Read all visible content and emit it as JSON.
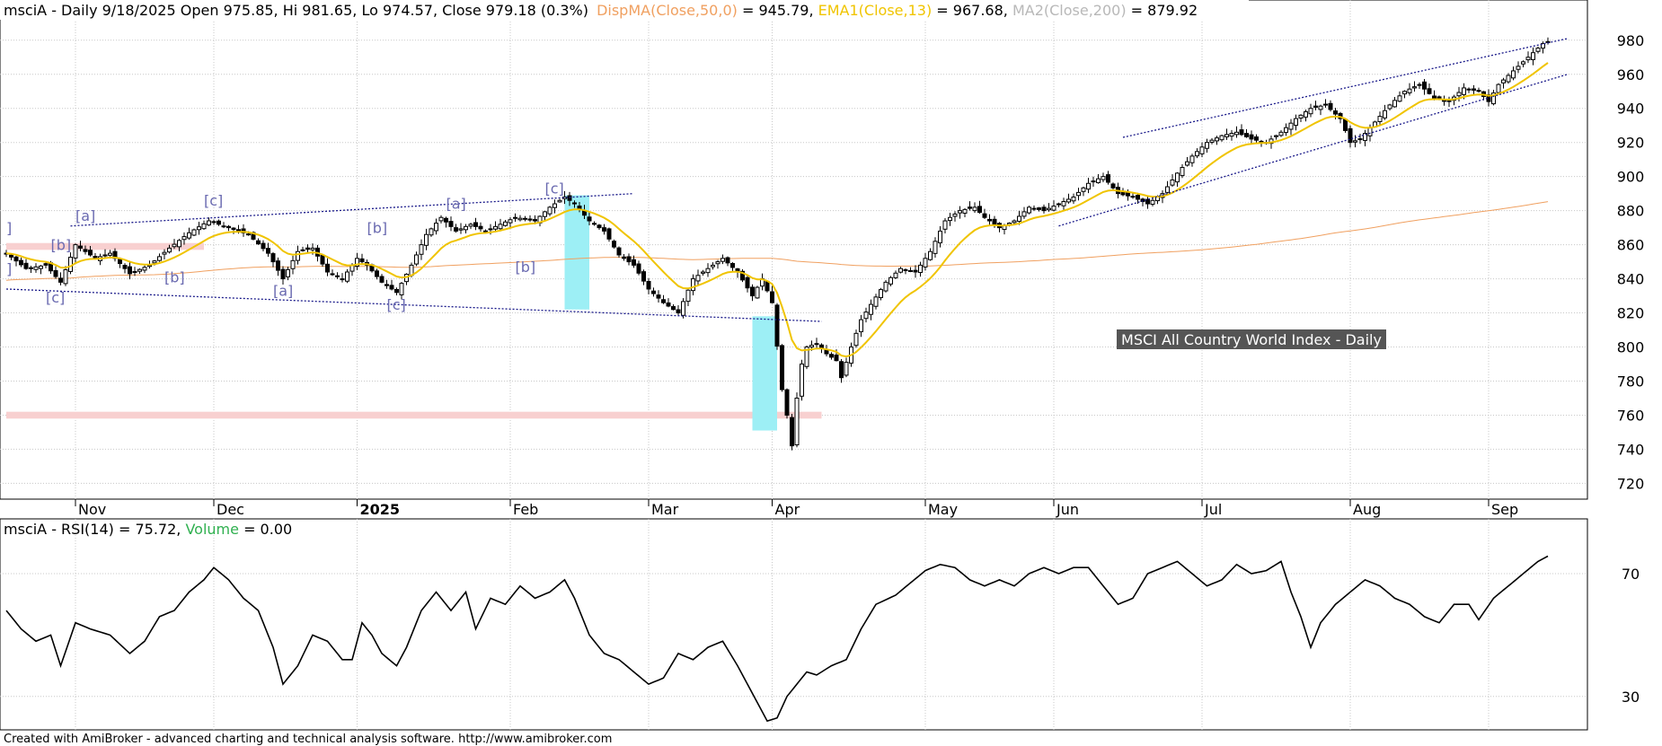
{
  "header": {
    "symbol_prefix": "msciA - Daily 9/18/2025 Open 975.85, Hi 981.65, Lo 974.57, Close 979.18 (0.3%)",
    "ind1_label": "DispMA(Close,50,0)",
    "ind1_value": " = 945.79, ",
    "ind2_label": "EMA1(Close,13)",
    "ind2_value": " = 967.68, ",
    "ind3_label": "MA2(Close,200)",
    "ind3_value": " = 879.92"
  },
  "rsi_header": {
    "prefix": "msciA - RSI(14) = 75.72, ",
    "volume_label": "Volume",
    "volume_value": " = 0.00"
  },
  "index_label": "MSCI All Country World Index - Daily",
  "footer": "Created with AmiBroker - advanced charting and technical analysis software. http://www.amibroker.com",
  "colors": {
    "dispma": "#f0a060",
    "ema": "#f0c400",
    "ma200": "#c0c0c0",
    "volume": "#30b050",
    "trend": "#1a1a8a",
    "highlight": "#9deff5",
    "zone": "#f8d0d0",
    "label_bg": "#555555"
  },
  "chart_data": {
    "type": "candlestick",
    "y_ticks": [
      720,
      740,
      760,
      780,
      800,
      820,
      840,
      860,
      880,
      900,
      920,
      940,
      960,
      980
    ],
    "ylim": [
      716,
      992
    ],
    "x_month_labels": [
      {
        "label": "Nov",
        "i": 14
      },
      {
        "label": "Dec",
        "i": 42
      },
      {
        "label": "2025",
        "i": 71
      },
      {
        "label": "Feb",
        "i": 102
      },
      {
        "label": "Mar",
        "i": 130
      },
      {
        "label": "Apr",
        "i": 155
      },
      {
        "label": "May",
        "i": 186
      },
      {
        "label": "Jun",
        "i": 212
      },
      {
        "label": "Jul",
        "i": 242
      },
      {
        "label": "Aug",
        "i": 272
      },
      {
        "label": "Sep",
        "i": 300
      }
    ],
    "close_anchors": [
      [
        0,
        855
      ],
      [
        4,
        846
      ],
      [
        8,
        848
      ],
      [
        11,
        838
      ],
      [
        14,
        860
      ],
      [
        18,
        852
      ],
      [
        21,
        855
      ],
      [
        25,
        843
      ],
      [
        29,
        848
      ],
      [
        33,
        858
      ],
      [
        37,
        867
      ],
      [
        41,
        874
      ],
      [
        45,
        870
      ],
      [
        49,
        866
      ],
      [
        53,
        855
      ],
      [
        56,
        840
      ],
      [
        59,
        856
      ],
      [
        62,
        858
      ],
      [
        65,
        844
      ],
      [
        68,
        840
      ],
      [
        71,
        852
      ],
      [
        73,
        848
      ],
      [
        76,
        838
      ],
      [
        79,
        832
      ],
      [
        82,
        848
      ],
      [
        85,
        866
      ],
      [
        88,
        876
      ],
      [
        91,
        868
      ],
      [
        94,
        872
      ],
      [
        97,
        868
      ],
      [
        100,
        872
      ],
      [
        103,
        876
      ],
      [
        107,
        874
      ],
      [
        110,
        882
      ],
      [
        113,
        888
      ],
      [
        115,
        884
      ],
      [
        118,
        874
      ],
      [
        121,
        868
      ],
      [
        124,
        854
      ],
      [
        127,
        848
      ],
      [
        130,
        834
      ],
      [
        133,
        826
      ],
      [
        136,
        820
      ],
      [
        139,
        840
      ],
      [
        142,
        846
      ],
      [
        145,
        852
      ],
      [
        148,
        844
      ],
      [
        151,
        830
      ],
      [
        153,
        840
      ],
      [
        155,
        826
      ],
      [
        157,
        775
      ],
      [
        158,
        760
      ],
      [
        159,
        742
      ],
      [
        160,
        770
      ],
      [
        161,
        790
      ],
      [
        162,
        800
      ],
      [
        164,
        802
      ],
      [
        166,
        796
      ],
      [
        168,
        792
      ],
      [
        169,
        782
      ],
      [
        171,
        800
      ],
      [
        173,
        816
      ],
      [
        175,
        825
      ],
      [
        178,
        838
      ],
      [
        181,
        846
      ],
      [
        184,
        844
      ],
      [
        187,
        856
      ],
      [
        190,
        874
      ],
      [
        193,
        880
      ],
      [
        196,
        882
      ],
      [
        198,
        876
      ],
      [
        201,
        870
      ],
      [
        204,
        874
      ],
      [
        207,
        882
      ],
      [
        210,
        880
      ],
      [
        213,
        884
      ],
      [
        216,
        888
      ],
      [
        219,
        896
      ],
      [
        222,
        900
      ],
      [
        225,
        890
      ],
      [
        228,
        888
      ],
      [
        231,
        884
      ],
      [
        234,
        890
      ],
      [
        237,
        902
      ],
      [
        240,
        912
      ],
      [
        243,
        920
      ],
      [
        246,
        924
      ],
      [
        249,
        926
      ],
      [
        252,
        922
      ],
      [
        255,
        920
      ],
      [
        258,
        926
      ],
      [
        261,
        934
      ],
      [
        264,
        940
      ],
      [
        267,
        942
      ],
      [
        270,
        934
      ],
      [
        272,
        920
      ],
      [
        274,
        922
      ],
      [
        277,
        932
      ],
      [
        280,
        942
      ],
      [
        283,
        950
      ],
      [
        286,
        954
      ],
      [
        289,
        946
      ],
      [
        292,
        944
      ],
      [
        295,
        952
      ],
      [
        298,
        950
      ],
      [
        300,
        944
      ],
      [
        302,
        954
      ],
      [
        305,
        962
      ],
      [
        308,
        970
      ],
      [
        311,
        978
      ],
      [
        312,
        979.18
      ]
    ],
    "series": [
      {
        "name": "DispMA(Close,50,0)",
        "last": 945.79
      },
      {
        "name": "EMA1(Close,13)",
        "last": 967.68
      },
      {
        "name": "MA2(Close,200)",
        "last": 879.92
      }
    ],
    "trend_channels": [
      {
        "from": [
          13,
          871
        ],
        "to": [
          127,
          890
        ]
      },
      {
        "from": [
          0,
          834
        ],
        "to": [
          165,
          815
        ]
      },
      {
        "from": [
          226,
          923
        ],
        "to": [
          316,
          981
        ]
      },
      {
        "from": [
          213,
          871
        ],
        "to": [
          316,
          960
        ]
      }
    ],
    "highlights": [
      {
        "from_i": 113,
        "to_i": 118,
        "y_low": 822,
        "y_high": 889
      },
      {
        "from_i": 151,
        "to_i": 156,
        "y_low": 751,
        "y_high": 818
      }
    ],
    "resistance_zones": [
      {
        "from_i": 0,
        "to_i": 165,
        "y_low": 758,
        "y_high": 762
      },
      {
        "from_i": 0,
        "to_i": 40,
        "y_low": 857,
        "y_high": 861
      }
    ],
    "wave_labels": [
      {
        "text": "]",
        "i": 0,
        "y": 867
      },
      {
        "text": "]",
        "i": 0,
        "y": 843
      },
      {
        "text": "[a]",
        "i": 14,
        "y": 874
      },
      {
        "text": "[b]",
        "i": 9,
        "y": 857
      },
      {
        "text": "[c]",
        "i": 8,
        "y": 826
      },
      {
        "text": "[b]",
        "i": 32,
        "y": 838
      },
      {
        "text": "[c]",
        "i": 40,
        "y": 883
      },
      {
        "text": "[a]",
        "i": 54,
        "y": 830
      },
      {
        "text": "[b]",
        "i": 73,
        "y": 867
      },
      {
        "text": "[c]",
        "i": 77,
        "y": 822
      },
      {
        "text": "[a]",
        "i": 89,
        "y": 881
      },
      {
        "text": "[b]",
        "i": 103,
        "y": 844
      },
      {
        "text": "[c]",
        "i": 109,
        "y": 890
      }
    ],
    "rsi": {
      "y_ticks": [
        30,
        70
      ],
      "ylim": [
        20,
        82
      ],
      "anchors": [
        [
          0,
          58
        ],
        [
          3,
          52
        ],
        [
          6,
          48
        ],
        [
          9,
          50
        ],
        [
          11,
          40
        ],
        [
          14,
          54
        ],
        [
          17,
          52
        ],
        [
          21,
          50
        ],
        [
          25,
          44
        ],
        [
          28,
          48
        ],
        [
          31,
          56
        ],
        [
          34,
          58
        ],
        [
          37,
          64
        ],
        [
          40,
          68
        ],
        [
          42,
          72
        ],
        [
          45,
          68
        ],
        [
          48,
          62
        ],
        [
          51,
          58
        ],
        [
          54,
          46
        ],
        [
          56,
          34
        ],
        [
          59,
          40
        ],
        [
          62,
          50
        ],
        [
          65,
          48
        ],
        [
          68,
          42
        ],
        [
          70,
          42
        ],
        [
          72,
          54
        ],
        [
          74,
          50
        ],
        [
          76,
          44
        ],
        [
          79,
          40
        ],
        [
          81,
          46
        ],
        [
          84,
          58
        ],
        [
          87,
          64
        ],
        [
          90,
          58
        ],
        [
          93,
          64
        ],
        [
          95,
          52
        ],
        [
          98,
          62
        ],
        [
          101,
          60
        ],
        [
          104,
          66
        ],
        [
          107,
          62
        ],
        [
          110,
          64
        ],
        [
          113,
          68
        ],
        [
          115,
          62
        ],
        [
          118,
          50
        ],
        [
          121,
          44
        ],
        [
          124,
          42
        ],
        [
          127,
          38
        ],
        [
          130,
          34
        ],
        [
          133,
          36
        ],
        [
          136,
          44
        ],
        [
          139,
          42
        ],
        [
          142,
          46
        ],
        [
          145,
          48
        ],
        [
          148,
          40
        ],
        [
          150,
          34
        ],
        [
          152,
          28
        ],
        [
          154,
          22
        ],
        [
          156,
          23
        ],
        [
          158,
          30
        ],
        [
          160,
          34
        ],
        [
          162,
          38
        ],
        [
          164,
          37
        ],
        [
          167,
          40
        ],
        [
          170,
          42
        ],
        [
          173,
          52
        ],
        [
          176,
          60
        ],
        [
          180,
          63
        ],
        [
          183,
          67
        ],
        [
          186,
          71
        ],
        [
          189,
          73
        ],
        [
          192,
          72
        ],
        [
          195,
          68
        ],
        [
          198,
          66
        ],
        [
          201,
          68
        ],
        [
          204,
          66
        ],
        [
          207,
          70
        ],
        [
          210,
          72
        ],
        [
          213,
          70
        ],
        [
          216,
          72
        ],
        [
          219,
          72
        ],
        [
          222,
          66
        ],
        [
          225,
          60
        ],
        [
          228,
          62
        ],
        [
          231,
          70
        ],
        [
          234,
          72
        ],
        [
          237,
          74
        ],
        [
          240,
          70
        ],
        [
          243,
          66
        ],
        [
          246,
          68
        ],
        [
          249,
          73
        ],
        [
          252,
          70
        ],
        [
          255,
          71
        ],
        [
          258,
          74
        ],
        [
          260,
          64
        ],
        [
          262,
          56
        ],
        [
          264,
          46
        ],
        [
          266,
          54
        ],
        [
          269,
          60
        ],
        [
          272,
          64
        ],
        [
          275,
          68
        ],
        [
          278,
          66
        ],
        [
          281,
          62
        ],
        [
          284,
          60
        ],
        [
          287,
          56
        ],
        [
          290,
          54
        ],
        [
          293,
          60
        ],
        [
          296,
          60
        ],
        [
          298,
          55
        ],
        [
          301,
          62
        ],
        [
          304,
          66
        ],
        [
          307,
          70
        ],
        [
          310,
          74
        ],
        [
          312,
          75.72
        ]
      ]
    }
  }
}
